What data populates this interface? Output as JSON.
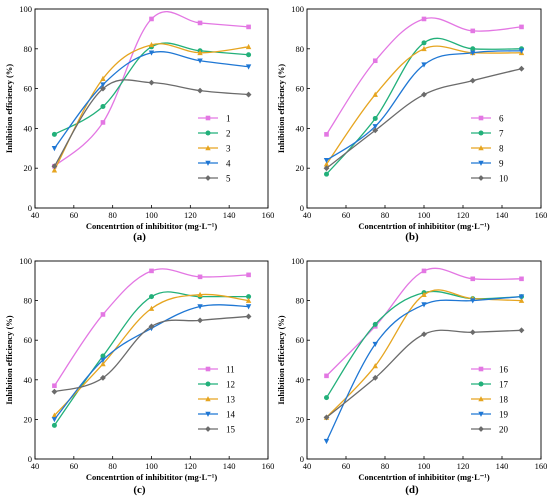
{
  "panels": [
    {
      "caption": "(a)",
      "chart_data": {
        "type": "line",
        "xlabel": "Concentrtion of inhibititor (mg·L⁻¹)",
        "ylabel": "Inhibition efficiency (%)",
        "xlim": [
          40,
          160
        ],
        "ylim": [
          0,
          100
        ],
        "x_ticks": [
          40,
          60,
          80,
          100,
          120,
          140,
          160
        ],
        "y_ticks": [
          0,
          20,
          40,
          60,
          80,
          100
        ],
        "x": [
          50,
          75,
          100,
          125,
          150
        ],
        "legend_position": "bottom-right",
        "series": [
          {
            "name": "1",
            "color": "#e377e3",
            "values": [
              21,
              43,
              95,
              93,
              91
            ]
          },
          {
            "name": "2",
            "color": "#22b07a",
            "values": [
              37,
              51,
              81,
              79,
              77
            ]
          },
          {
            "name": "3",
            "color": "#e6a520",
            "values": [
              19,
              65,
              82,
              78,
              81
            ]
          },
          {
            "name": "4",
            "color": "#1f77d4",
            "values": [
              30,
              62,
              78,
              74,
              71
            ]
          },
          {
            "name": "5",
            "color": "#6b6b6b",
            "values": [
              21,
              60,
              63,
              59,
              57
            ]
          }
        ]
      }
    },
    {
      "caption": "(b)",
      "chart_data": {
        "type": "line",
        "xlabel": "Concentrtion of inhibititor (mg·L⁻¹)",
        "ylabel": "Inhibition efficiency (%)",
        "xlim": [
          40,
          160
        ],
        "ylim": [
          0,
          100
        ],
        "x_ticks": [
          40,
          60,
          80,
          100,
          120,
          140,
          160
        ],
        "y_ticks": [
          0,
          20,
          40,
          60,
          80,
          100
        ],
        "x": [
          50,
          75,
          100,
          125,
          150
        ],
        "legend_position": "bottom-right",
        "series": [
          {
            "name": "6",
            "color": "#e377e3",
            "values": [
              37,
              74,
              95,
              89,
              91
            ]
          },
          {
            "name": "7",
            "color": "#22b07a",
            "values": [
              17,
              45,
              83,
              80,
              80
            ]
          },
          {
            "name": "8",
            "color": "#e6a520",
            "values": [
              22,
              57,
              80,
              78,
              78
            ]
          },
          {
            "name": "9",
            "color": "#1f77d4",
            "values": [
              24,
              41,
              72,
              78,
              79
            ]
          },
          {
            "name": "10",
            "color": "#6b6b6b",
            "values": [
              20,
              39,
              57,
              64,
              70
            ]
          }
        ]
      }
    },
    {
      "caption": "(c)",
      "chart_data": {
        "type": "line",
        "xlabel": "Concentrtion of inhibititor (mg·L⁻¹)",
        "ylabel": "Inhibition efficiency (%)",
        "xlim": [
          40,
          160
        ],
        "ylim": [
          0,
          100
        ],
        "x_ticks": [
          40,
          60,
          80,
          100,
          120,
          140,
          160
        ],
        "y_ticks": [
          0,
          20,
          40,
          60,
          80,
          100
        ],
        "x": [
          50,
          75,
          100,
          125,
          150
        ],
        "legend_position": "bottom-right",
        "series": [
          {
            "name": "11",
            "color": "#e377e3",
            "values": [
              37,
              73,
              95,
              92,
              93
            ]
          },
          {
            "name": "12",
            "color": "#22b07a",
            "values": [
              17,
              52,
              82,
              82,
              82
            ]
          },
          {
            "name": "13",
            "color": "#e6a520",
            "values": [
              22,
              48,
              76,
              83,
              80
            ]
          },
          {
            "name": "14",
            "color": "#1f77d4",
            "values": [
              20,
              50,
              66,
              77,
              77
            ]
          },
          {
            "name": "15",
            "color": "#6b6b6b",
            "values": [
              34,
              41,
              67,
              70,
              72
            ]
          }
        ]
      }
    },
    {
      "caption": "(d)",
      "chart_data": {
        "type": "line",
        "xlabel": "Concentrtion of inhibititor (mg·L⁻¹)",
        "ylabel": "Inhibition efficiency (%)",
        "xlim": [
          40,
          160
        ],
        "ylim": [
          0,
          100
        ],
        "x_ticks": [
          40,
          60,
          80,
          100,
          120,
          140,
          160
        ],
        "y_ticks": [
          0,
          20,
          40,
          60,
          80,
          100
        ],
        "x": [
          50,
          75,
          100,
          125,
          150
        ],
        "legend_position": "bottom-right",
        "series": [
          {
            "name": "16",
            "color": "#e377e3",
            "values": [
              42,
              67,
              95,
              91,
              91
            ]
          },
          {
            "name": "17",
            "color": "#22b07a",
            "values": [
              31,
              68,
              84,
              81,
              82
            ]
          },
          {
            "name": "18",
            "color": "#e6a520",
            "values": [
              21,
              47,
              83,
              81,
              80
            ]
          },
          {
            "name": "19",
            "color": "#1f77d4",
            "values": [
              9,
              58,
              78,
              80,
              82
            ]
          },
          {
            "name": "20",
            "color": "#6b6b6b",
            "values": [
              21,
              41,
              63,
              64,
              65
            ]
          }
        ]
      }
    }
  ]
}
